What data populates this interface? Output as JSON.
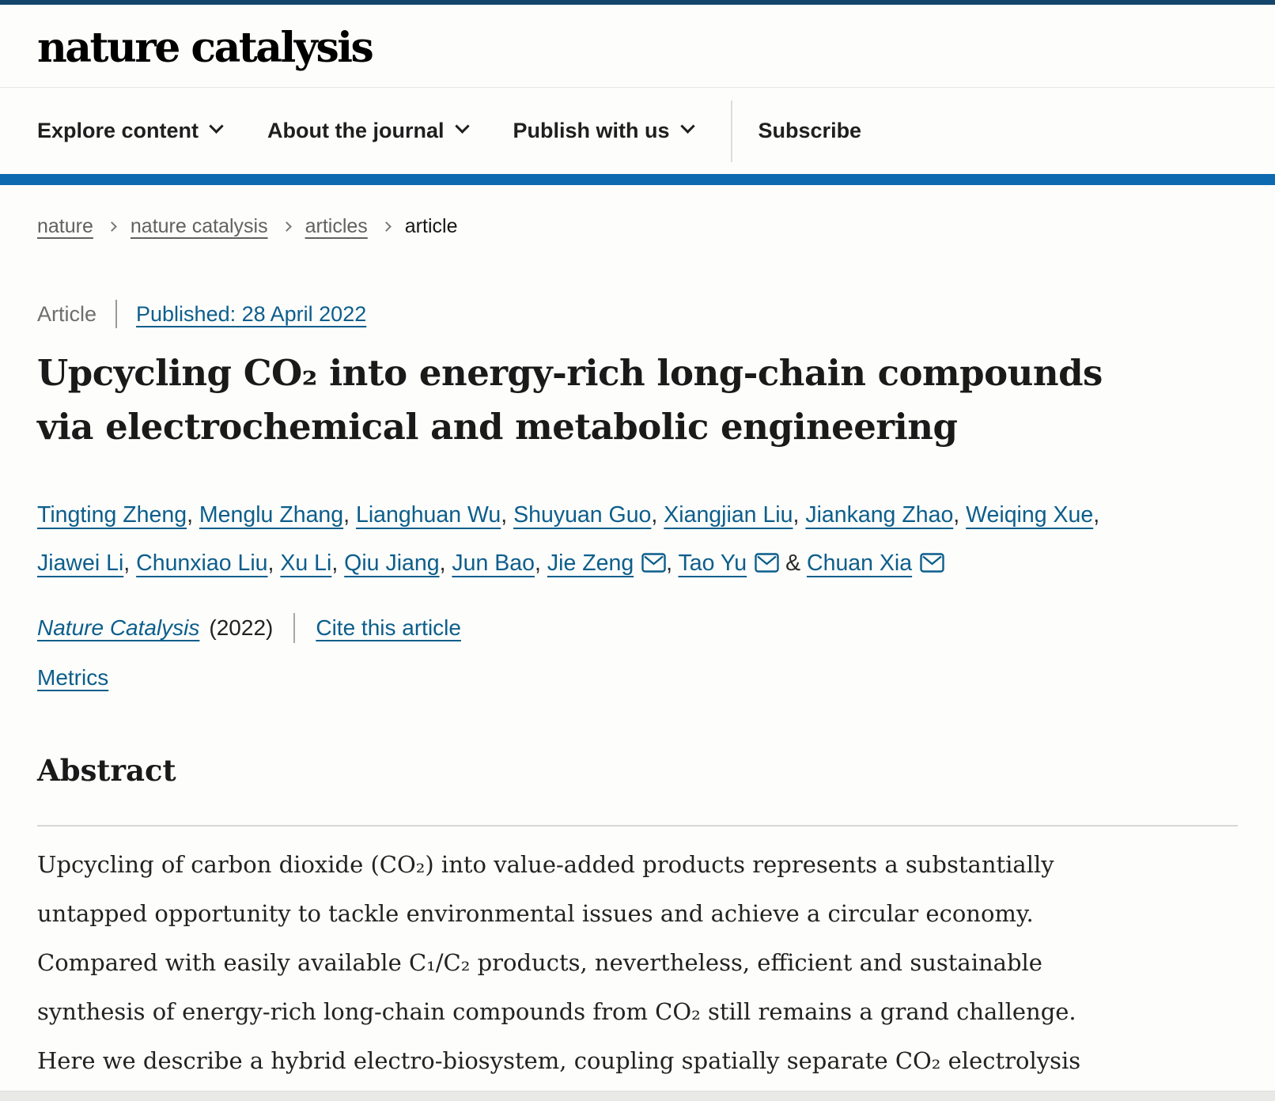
{
  "header": {
    "logo": "nature catalysis",
    "nav_items": [
      {
        "label": "Explore content"
      },
      {
        "label": "About the journal"
      },
      {
        "label": "Publish with us"
      }
    ],
    "subscribe_label": "Subscribe"
  },
  "breadcrumb": {
    "items": [
      {
        "label": "nature"
      },
      {
        "label": "nature catalysis"
      },
      {
        "label": "articles"
      },
      {
        "label": "article"
      }
    ]
  },
  "article": {
    "type_label": "Article",
    "published": "Published: 28 April 2022",
    "title": "Upcycling CO₂ into energy-rich long-chain compounds via electrochemical and metabolic engineering",
    "title_lines": [
      "Upcycling CO₂ into energy-rich long-chain compounds",
      "via electrochemical and metabolic engineering"
    ],
    "authors": [
      {
        "name": "Tingting Zheng"
      },
      {
        "name": "Menglu Zhang"
      },
      {
        "name": "Lianghuan Wu"
      },
      {
        "name": "Shuyuan Guo"
      },
      {
        "name": "Xiangjian Liu"
      },
      {
        "name": "Jiankang Zhao"
      },
      {
        "name": "Weiqing Xue"
      },
      {
        "name": "Jiawei Li"
      },
      {
        "name": "Chunxiao Liu"
      },
      {
        "name": "Xu Li"
      },
      {
        "name": "Qiu Jiang"
      },
      {
        "name": "Jun Bao"
      },
      {
        "name": "Jie Zeng",
        "email": true
      },
      {
        "name": "Tao Yu",
        "email": true
      },
      {
        "name": "Chuan Xia",
        "email": true
      }
    ],
    "journal": "Nature Catalysis",
    "year": "(2022)",
    "cite_label": "Cite this article",
    "metrics_label": "Metrics"
  },
  "abstract": {
    "heading": "Abstract",
    "lines": [
      "Upcycling of carbon dioxide (CO₂) into value-added products represents a substantially",
      "untapped opportunity to tackle environmental issues and achieve a circular economy.",
      "Compared with easily available C₁/C₂ products, nevertheless, efficient and sustainable",
      "synthesis of energy-rich long-chain compounds from CO₂ still remains a grand challenge.",
      "Here we describe a hybrid electro-biosystem, coupling spatially separate CO₂ electrolysis"
    ]
  },
  "colors": {
    "top_bar": "#14456b",
    "accent_bar": "#0d69b0",
    "link": "#0c5e8c",
    "breadcrumb_gray": "#616161",
    "text": "#222222"
  }
}
